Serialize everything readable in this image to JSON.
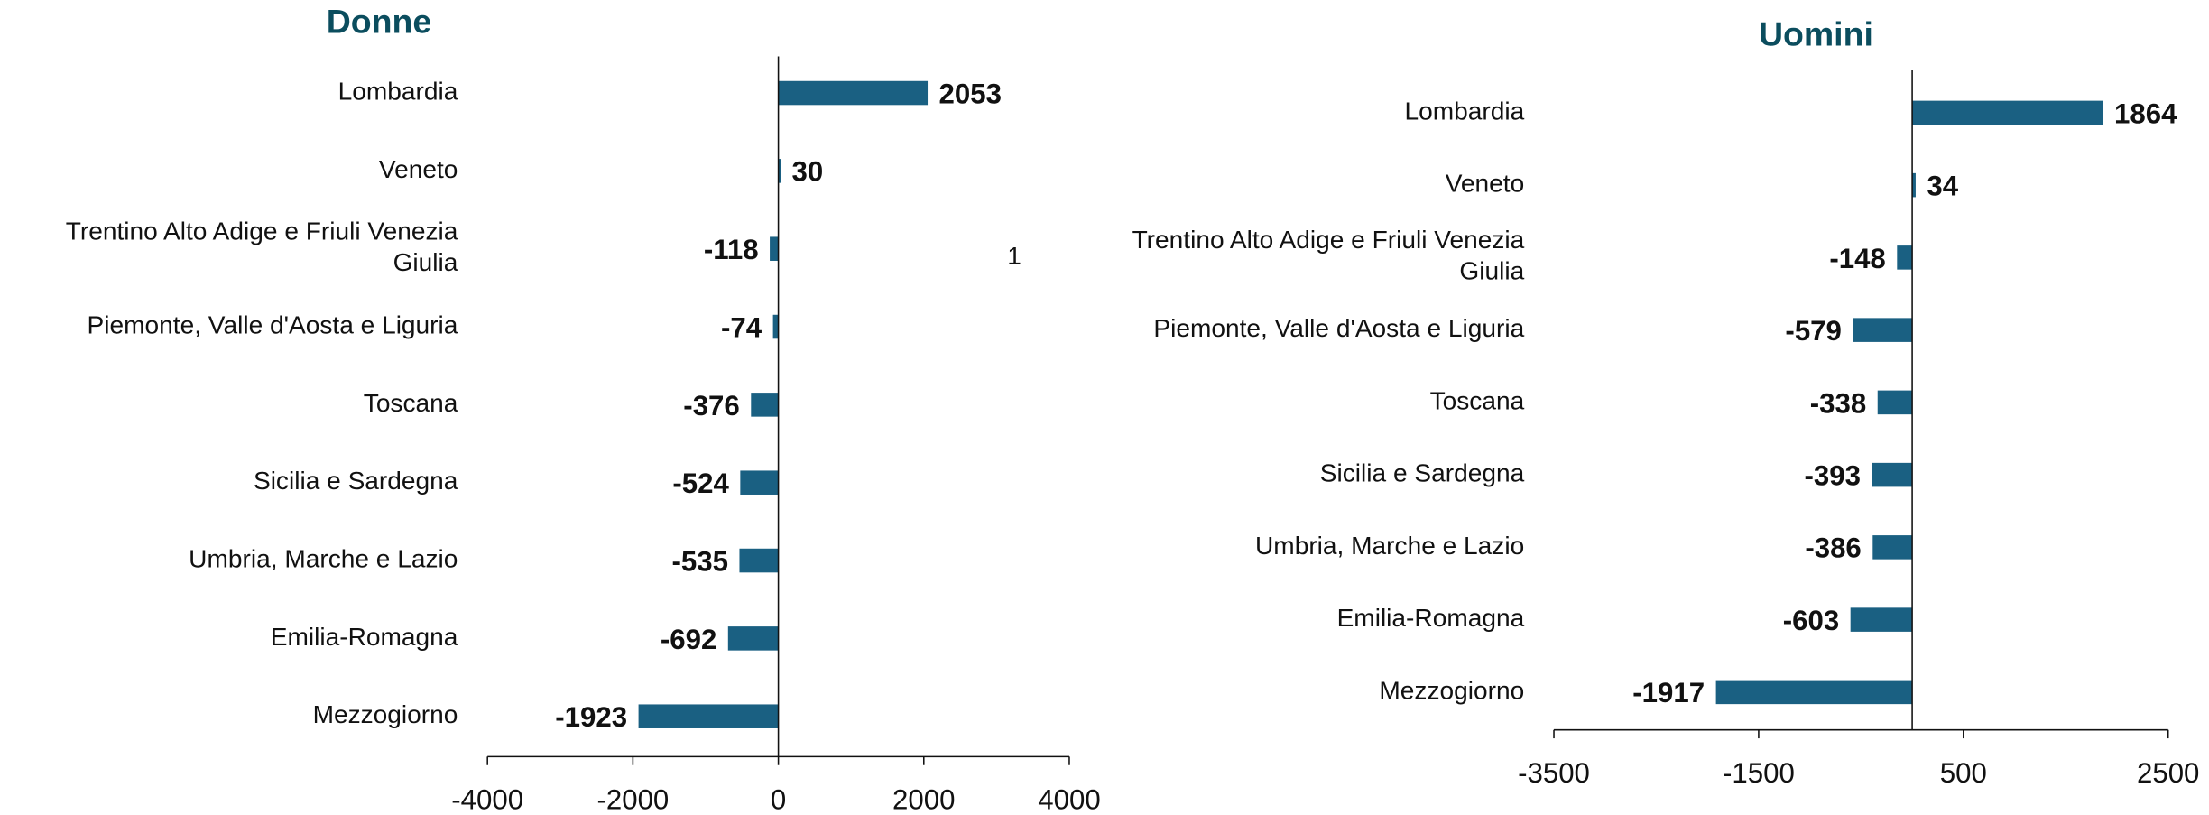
{
  "chart_data": [
    {
      "type": "bar",
      "orientation": "horizontal",
      "title": "Donne",
      "annotation": "1",
      "categories": [
        "Lombardia",
        "Veneto",
        "Trentino Alto Adige e Friuli Venezia Giulia",
        "Piemonte, Valle d'Aosta e Liguria",
        "Toscana",
        "Sicilia e Sardegna",
        "Umbria, Marche e Lazio",
        "Emilia-Romagna",
        "Mezzogiorno"
      ],
      "values": [
        2053,
        30,
        -118,
        -74,
        -376,
        -524,
        -535,
        -692,
        -1923
      ],
      "color": "#1a6082",
      "label_color": "#5a5a5a",
      "xlim": [
        -4000,
        4000
      ],
      "xticks": [
        -4000,
        -2000,
        0,
        2000,
        4000
      ]
    },
    {
      "type": "bar",
      "orientation": "horizontal",
      "title": "Uomini",
      "categories": [
        "Lombardia",
        "Veneto",
        "Trentino Alto Adige e Friuli Venezia Giulia",
        "Piemonte, Valle d'Aosta e Liguria",
        "Toscana",
        "Sicilia e Sardegna",
        "Umbria, Marche e Lazio",
        "Emilia-Romagna",
        "Mezzogiorno"
      ],
      "values": [
        1864,
        34,
        -148,
        -579,
        -338,
        -393,
        -386,
        -603,
        -1917
      ],
      "color": "#1a6082",
      "label_color": "#444444",
      "xlim": [
        -3500,
        2500
      ],
      "xticks": [
        -3500,
        -1500,
        500,
        2500
      ]
    }
  ]
}
